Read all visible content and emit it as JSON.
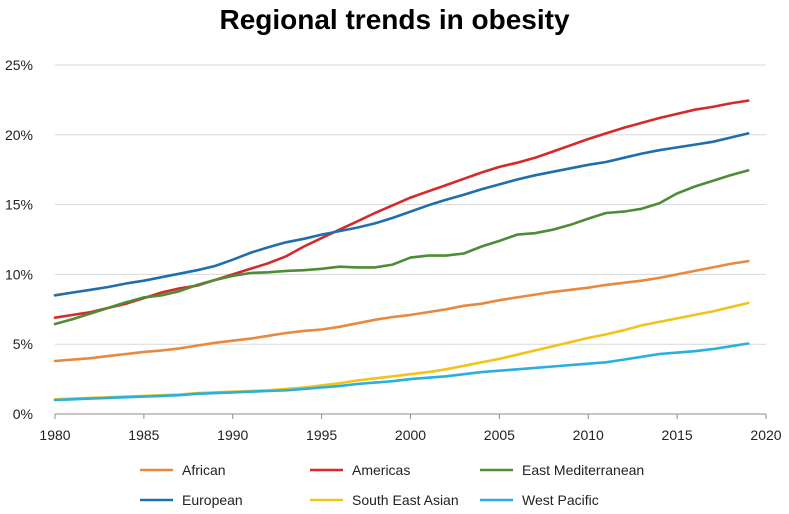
{
  "chart_data": {
    "type": "line",
    "title": "Regional trends in obesity",
    "xlabel": "",
    "ylabel": "",
    "xlim": [
      1980,
      2020
    ],
    "ylim": [
      0,
      25
    ],
    "x_ticks": [
      1980,
      1985,
      1990,
      1995,
      2000,
      2005,
      2010,
      2015,
      2020
    ],
    "y_ticks": [
      0,
      5,
      10,
      15,
      20,
      25
    ],
    "y_tick_labels": [
      "0%",
      "5%",
      "10%",
      "15%",
      "20%",
      "25%"
    ],
    "grid": "horizontal",
    "legend_position": "bottom",
    "x": [
      1980,
      1981,
      1982,
      1983,
      1984,
      1985,
      1986,
      1987,
      1988,
      1989,
      1990,
      1991,
      1992,
      1993,
      1994,
      1995,
      1996,
      1997,
      1998,
      1999,
      2000,
      2001,
      2002,
      2003,
      2004,
      2005,
      2006,
      2007,
      2008,
      2009,
      2010,
      2011,
      2012,
      2013,
      2014,
      2015,
      2016,
      2017,
      2018,
      2019
    ],
    "series": [
      {
        "name": "African",
        "color": "#e8893d",
        "values": [
          3.8,
          3.9,
          4.0,
          4.15,
          4.3,
          4.45,
          4.55,
          4.7,
          4.9,
          5.1,
          5.25,
          5.4,
          5.6,
          5.8,
          5.95,
          6.05,
          6.25,
          6.5,
          6.75,
          6.95,
          7.1,
          7.3,
          7.5,
          7.75,
          7.9,
          8.15,
          8.35,
          8.55,
          8.75,
          8.9,
          9.05,
          9.25,
          9.4,
          9.55,
          9.75,
          10.0,
          10.25,
          10.5,
          10.75,
          10.95
        ]
      },
      {
        "name": "Americas",
        "color": "#d62a2a",
        "values": [
          6.9,
          7.1,
          7.3,
          7.6,
          7.9,
          8.3,
          8.7,
          9.0,
          9.2,
          9.6,
          10.0,
          10.4,
          10.8,
          11.3,
          12.0,
          12.6,
          13.2,
          13.8,
          14.4,
          14.95,
          15.5,
          15.95,
          16.4,
          16.85,
          17.3,
          17.7,
          18.0,
          18.35,
          18.8,
          19.25,
          19.7,
          20.1,
          20.5,
          20.85,
          21.2,
          21.5,
          21.8,
          22.0,
          22.25,
          22.45
        ]
      },
      {
        "name": "East Mediterranean",
        "color": "#4e8c35",
        "values": [
          6.45,
          6.8,
          7.2,
          7.6,
          8.0,
          8.35,
          8.5,
          8.8,
          9.25,
          9.6,
          9.9,
          10.1,
          10.15,
          10.25,
          10.3,
          10.4,
          10.55,
          10.5,
          10.5,
          10.7,
          11.2,
          11.35,
          11.35,
          11.5,
          12.0,
          12.4,
          12.85,
          12.95,
          13.2,
          13.55,
          14.0,
          14.4,
          14.5,
          14.7,
          15.1,
          15.8,
          16.3,
          16.7,
          17.1,
          17.45
        ]
      },
      {
        "name": "European",
        "color": "#1f6fad",
        "values": [
          8.5,
          8.7,
          8.9,
          9.1,
          9.35,
          9.55,
          9.8,
          10.05,
          10.3,
          10.6,
          11.05,
          11.55,
          11.95,
          12.3,
          12.55,
          12.85,
          13.1,
          13.35,
          13.65,
          14.05,
          14.5,
          14.95,
          15.35,
          15.7,
          16.1,
          16.45,
          16.8,
          17.1,
          17.35,
          17.6,
          17.85,
          18.05,
          18.35,
          18.65,
          18.9,
          19.1,
          19.3,
          19.5,
          19.8,
          20.1
        ]
      },
      {
        "name": "South East Asian",
        "color": "#f2c318",
        "values": [
          1.05,
          1.1,
          1.15,
          1.2,
          1.25,
          1.3,
          1.35,
          1.4,
          1.5,
          1.55,
          1.6,
          1.65,
          1.7,
          1.8,
          1.9,
          2.05,
          2.2,
          2.4,
          2.55,
          2.7,
          2.85,
          3.0,
          3.2,
          3.45,
          3.7,
          3.95,
          4.25,
          4.55,
          4.85,
          5.15,
          5.45,
          5.7,
          6.0,
          6.35,
          6.6,
          6.85,
          7.1,
          7.35,
          7.65,
          7.95
        ]
      },
      {
        "name": "West Pacific",
        "color": "#2ab0de",
        "values": [
          1.0,
          1.05,
          1.1,
          1.15,
          1.2,
          1.25,
          1.3,
          1.35,
          1.45,
          1.5,
          1.55,
          1.6,
          1.65,
          1.7,
          1.8,
          1.9,
          2.0,
          2.15,
          2.25,
          2.35,
          2.5,
          2.6,
          2.7,
          2.85,
          3.0,
          3.1,
          3.2,
          3.3,
          3.4,
          3.5,
          3.6,
          3.7,
          3.9,
          4.1,
          4.3,
          4.4,
          4.5,
          4.65,
          4.85,
          5.05
        ]
      }
    ]
  }
}
